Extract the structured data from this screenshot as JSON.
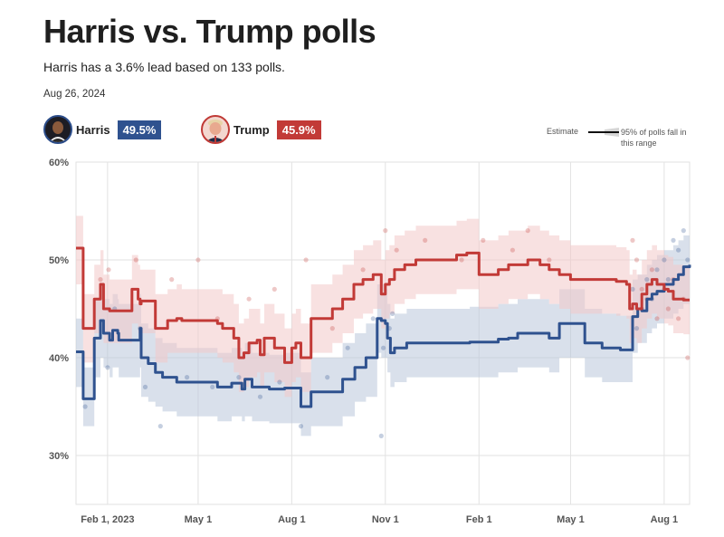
{
  "header": {
    "title": "Harris vs. Trump polls",
    "subtitle": "Harris has a 3.6% lead based on 133 polls.",
    "date": "Aug 26, 2024"
  },
  "candidates": [
    {
      "name": "Harris",
      "value": "49.5%",
      "color": "#2f528f",
      "avatar_icon": "harris-avatar-icon"
    },
    {
      "name": "Trump",
      "value": "45.9%",
      "color": "#c23a37",
      "avatar_icon": "trump-avatar-icon"
    }
  ],
  "estimate_key": {
    "label": "Estimate",
    "range_label": "95% of polls fall in this range"
  },
  "chart_data": {
    "type": "line",
    "title": "Harris vs. Trump polls",
    "ylabel": "",
    "xlabel": "",
    "ylim": [
      25,
      60
    ],
    "yticks": [
      30,
      40,
      50,
      60
    ],
    "ytick_labels": [
      "30%",
      "40%",
      "50%",
      "60%"
    ],
    "x_domain": [
      "2023-01-01",
      "2024-08-26"
    ],
    "xticks": [
      "2023-02-01",
      "2023-05-01",
      "2023-08-01",
      "2023-11-01",
      "2024-02-01",
      "2024-05-01",
      "2024-08-01"
    ],
    "xtick_labels": [
      "Feb 1, 2023",
      "May 1",
      "Aug 1",
      "Nov 1",
      "Feb 1",
      "May 1",
      "Aug 1"
    ],
    "grid": true,
    "series": [
      {
        "name": "Harris",
        "color": "#2f528f",
        "band_color": "#b9c7da",
        "dates": [
          "2023-01-01",
          "2023-01-04",
          "2023-01-07",
          "2023-01-08",
          "2023-01-18",
          "2023-01-19",
          "2023-01-25",
          "2023-01-28",
          "2023-02-03",
          "2023-02-05",
          "2023-02-06",
          "2023-02-11",
          "2023-02-12",
          "2023-02-20",
          "2023-02-25",
          "2023-03-05",
          "2023-03-06",
          "2023-03-12",
          "2023-03-13",
          "2023-03-20",
          "2023-03-27",
          "2023-04-06",
          "2023-04-10",
          "2023-04-25",
          "2023-05-05",
          "2023-05-20",
          "2023-06-03",
          "2023-06-13",
          "2023-06-16",
          "2023-06-23",
          "2023-07-01",
          "2023-07-10",
          "2023-07-15",
          "2023-07-25",
          "2023-08-02",
          "2023-08-10",
          "2023-08-20",
          "2023-09-01",
          "2023-09-20",
          "2023-10-02",
          "2023-10-13",
          "2023-10-22",
          "2023-10-24",
          "2023-10-28",
          "2023-11-01",
          "2023-11-03",
          "2023-11-06",
          "2023-11-10",
          "2023-11-22",
          "2023-12-01",
          "2024-01-01",
          "2024-01-20",
          "2024-01-23",
          "2024-02-10",
          "2024-02-12",
          "2024-02-20",
          "2024-03-01",
          "2024-03-10",
          "2024-03-15",
          "2024-04-01",
          "2024-04-10",
          "2024-04-20",
          "2024-05-01",
          "2024-05-15",
          "2024-06-01",
          "2024-06-19",
          "2024-06-27",
          "2024-07-01",
          "2024-07-06",
          "2024-07-10",
          "2024-07-15",
          "2024-07-20",
          "2024-07-25",
          "2024-08-01",
          "2024-08-10",
          "2024-08-15",
          "2024-08-20",
          "2024-08-26"
        ],
        "values": [
          40.6,
          40.6,
          40.6,
          35.8,
          35.8,
          42.0,
          43.8,
          42.5,
          41.8,
          41.8,
          42.8,
          42.5,
          41.8,
          41.8,
          41.8,
          43.0,
          40.0,
          40.0,
          39.4,
          38.5,
          38.0,
          38.0,
          37.5,
          37.5,
          37.5,
          37.0,
          37.4,
          36.8,
          37.8,
          37.0,
          37.0,
          36.8,
          36.8,
          36.9,
          36.9,
          35.0,
          36.5,
          36.5,
          37.8,
          39.0,
          40.0,
          40.0,
          44.0,
          43.8,
          43.5,
          42.0,
          40.5,
          41.0,
          41.5,
          41.5,
          41.5,
          41.5,
          41.6,
          41.6,
          41.6,
          41.9,
          42.0,
          42.5,
          42.5,
          42.5,
          42.0,
          43.5,
          43.5,
          41.5,
          41.0,
          40.8,
          40.8,
          44.2,
          45.0,
          44.8,
          46.0,
          46.5,
          46.8,
          47.5,
          48.0,
          48.5,
          49.3,
          49.5
        ],
        "band_lower": [
          37,
          37,
          37,
          33,
          33,
          38,
          40,
          39,
          38,
          38,
          39,
          39,
          38,
          38,
          38,
          39,
          36,
          36,
          35.5,
          35,
          34.5,
          34.5,
          34,
          34,
          34,
          33.5,
          34,
          33.5,
          34,
          33.5,
          33.5,
          33.3,
          33.3,
          33.3,
          33.3,
          32,
          33,
          33,
          34,
          35.5,
          36,
          36,
          40.5,
          40,
          40,
          38.5,
          37,
          37.5,
          38,
          38,
          38,
          38,
          38,
          38,
          38,
          38.5,
          38.5,
          39,
          39,
          39,
          38.5,
          40,
          40,
          38,
          37.5,
          37.5,
          37.5,
          40.5,
          41.5,
          41.5,
          42.5,
          43,
          43.5,
          44,
          44.5,
          45,
          45.5,
          46
        ],
        "band_upper": [
          44,
          44,
          44,
          39,
          39,
          46,
          47.5,
          46,
          45.5,
          45.5,
          46.5,
          46,
          45.5,
          45.5,
          45.5,
          46.5,
          43.5,
          43.5,
          43,
          42,
          41.5,
          41.5,
          41,
          41,
          41,
          40.5,
          41,
          40.5,
          41.5,
          40.5,
          40.5,
          40.3,
          40.3,
          40.5,
          40.5,
          38.5,
          40,
          40,
          41.5,
          42.5,
          43.5,
          43.5,
          47.5,
          47.5,
          47,
          45.5,
          44,
          44.5,
          45,
          45,
          45,
          45,
          45.2,
          45.2,
          45.2,
          45.5,
          45.5,
          46,
          46,
          46,
          45.5,
          47,
          47,
          45,
          44.5,
          44.3,
          44.3,
          48,
          48.5,
          48.5,
          49.5,
          50,
          50.5,
          51,
          51.5,
          52,
          52.5,
          53
        ]
      },
      {
        "name": "Trump",
        "color": "#c23a37",
        "band_color": "#f2c9c9",
        "dates": [
          "2023-01-01",
          "2023-01-07",
          "2023-01-08",
          "2023-01-18",
          "2023-01-19",
          "2023-01-25",
          "2023-01-28",
          "2023-02-03",
          "2023-02-05",
          "2023-02-20",
          "2023-02-25",
          "2023-03-03",
          "2023-03-05",
          "2023-03-06",
          "2023-03-20",
          "2023-04-01",
          "2023-04-10",
          "2023-04-15",
          "2023-05-01",
          "2023-05-20",
          "2023-05-25",
          "2023-06-05",
          "2023-06-10",
          "2023-06-15",
          "2023-06-20",
          "2023-06-28",
          "2023-07-01",
          "2023-07-05",
          "2023-07-15",
          "2023-07-25",
          "2023-08-01",
          "2023-08-05",
          "2023-08-10",
          "2023-08-20",
          "2023-09-01",
          "2023-09-10",
          "2023-09-20",
          "2023-10-01",
          "2023-10-10",
          "2023-10-20",
          "2023-10-25",
          "2023-10-28",
          "2023-11-01",
          "2023-11-05",
          "2023-11-10",
          "2023-11-20",
          "2023-12-01",
          "2023-12-15",
          "2024-01-01",
          "2024-01-10",
          "2024-01-20",
          "2024-02-01",
          "2024-02-10",
          "2024-02-20",
          "2024-03-01",
          "2024-03-10",
          "2024-03-20",
          "2024-04-01",
          "2024-04-10",
          "2024-04-20",
          "2024-05-01",
          "2024-05-15",
          "2024-06-01",
          "2024-06-15",
          "2024-06-25",
          "2024-06-28",
          "2024-07-01",
          "2024-07-05",
          "2024-07-10",
          "2024-07-15",
          "2024-07-20",
          "2024-07-25",
          "2024-08-01",
          "2024-08-05",
          "2024-08-10",
          "2024-08-15",
          "2024-08-20",
          "2024-08-26"
        ],
        "values": [
          51.2,
          51.2,
          43.0,
          43.0,
          46.0,
          47.5,
          45.0,
          44.8,
          44.8,
          44.8,
          47.0,
          46.0,
          45.5,
          45.8,
          43.0,
          43.8,
          44.0,
          43.8,
          43.8,
          43.5,
          43.0,
          42.0,
          40.0,
          40.5,
          41.5,
          41.8,
          40.3,
          42.0,
          41.0,
          39.5,
          41.0,
          41.5,
          40.0,
          44.0,
          44.0,
          45.0,
          46.0,
          47.5,
          48.0,
          48.5,
          48.5,
          46.5,
          47.5,
          48.0,
          49.0,
          49.5,
          50.0,
          50.0,
          50.0,
          50.5,
          50.7,
          48.5,
          48.5,
          49.0,
          49.5,
          49.5,
          50.0,
          49.5,
          49.0,
          48.5,
          48.0,
          48.0,
          48.0,
          47.8,
          47.5,
          45.0,
          45.5,
          45.0,
          46.5,
          47.5,
          48.0,
          47.5,
          47.0,
          46.8,
          46.0,
          46.0,
          45.9,
          45.9
        ],
        "band_lower": [
          47.5,
          47.5,
          39.5,
          39.5,
          42.5,
          44,
          41.5,
          41.5,
          41.5,
          41.5,
          43.5,
          42.5,
          42,
          42.5,
          39.5,
          40.5,
          40.5,
          40.5,
          40.5,
          40,
          39.5,
          38.5,
          36.5,
          37,
          38,
          38.5,
          37,
          38.5,
          37.5,
          36,
          37.5,
          38,
          36.5,
          40.5,
          40.5,
          41.5,
          42.5,
          44,
          44.5,
          45,
          45,
          43,
          44,
          44.5,
          45.5,
          46,
          46.5,
          46.5,
          46.5,
          47,
          47,
          45,
          45,
          45.5,
          46,
          46,
          46.5,
          46,
          45.5,
          45,
          44.5,
          44.5,
          44.5,
          44.3,
          44,
          41.5,
          42,
          41.5,
          43,
          44,
          44.5,
          44,
          43.5,
          43.3,
          42.5,
          42.5,
          42.4,
          42.4
        ],
        "band_upper": [
          54.5,
          54.5,
          46.5,
          46.5,
          49.5,
          51,
          48.5,
          48,
          48,
          48,
          50.5,
          49.5,
          49,
          49,
          46.5,
          47,
          47.5,
          47,
          47,
          47,
          46.5,
          45.5,
          43.5,
          44,
          45,
          45,
          43.5,
          45.5,
          44.5,
          43,
          44.5,
          45,
          43.5,
          47.5,
          47.5,
          48.5,
          49.5,
          51,
          51.5,
          52,
          52,
          50,
          51,
          51.5,
          52.5,
          53,
          53.5,
          53.5,
          53.5,
          54,
          54.2,
          52,
          52,
          52.5,
          53,
          53,
          53.5,
          53,
          52.5,
          52,
          51.5,
          51.5,
          51.5,
          51.3,
          51,
          48.5,
          49,
          48.5,
          50,
          51,
          51.5,
          51,
          50.5,
          50.3,
          49.5,
          49.5,
          49.4,
          49.4
        ]
      }
    ],
    "polls": [
      {
        "candidate": "Harris",
        "date": "2023-01-10",
        "value": 35
      },
      {
        "candidate": "Harris",
        "date": "2023-02-01",
        "value": 39
      },
      {
        "candidate": "Harris",
        "date": "2023-02-08",
        "value": 45
      },
      {
        "candidate": "Harris",
        "date": "2023-03-05",
        "value": 43
      },
      {
        "candidate": "Harris",
        "date": "2023-03-10",
        "value": 37
      },
      {
        "candidate": "Harris",
        "date": "2023-03-25",
        "value": 33
      },
      {
        "candidate": "Harris",
        "date": "2023-04-20",
        "value": 38
      },
      {
        "candidate": "Harris",
        "date": "2023-05-15",
        "value": 37
      },
      {
        "candidate": "Harris",
        "date": "2023-06-10",
        "value": 38
      },
      {
        "candidate": "Harris",
        "date": "2023-07-01",
        "value": 36
      },
      {
        "candidate": "Harris",
        "date": "2023-07-20",
        "value": 37.5
      },
      {
        "candidate": "Harris",
        "date": "2023-08-10",
        "value": 33
      },
      {
        "candidate": "Harris",
        "date": "2023-09-05",
        "value": 38
      },
      {
        "candidate": "Harris",
        "date": "2023-09-25",
        "value": 41
      },
      {
        "candidate": "Harris",
        "date": "2023-10-20",
        "value": 44
      },
      {
        "candidate": "Harris",
        "date": "2023-10-30",
        "value": 41
      },
      {
        "candidate": "Harris",
        "date": "2023-11-05",
        "value": 43
      },
      {
        "candidate": "Harris",
        "date": "2023-11-08",
        "value": 44.5
      },
      {
        "candidate": "Harris",
        "date": "2023-10-28",
        "value": 32
      },
      {
        "candidate": "Harris",
        "date": "2024-07-01",
        "value": 47
      },
      {
        "candidate": "Harris",
        "date": "2024-07-05",
        "value": 43
      },
      {
        "candidate": "Harris",
        "date": "2024-07-10",
        "value": 45
      },
      {
        "candidate": "Harris",
        "date": "2024-07-15",
        "value": 48
      },
      {
        "candidate": "Harris",
        "date": "2024-07-20",
        "value": 46
      },
      {
        "candidate": "Harris",
        "date": "2024-07-25",
        "value": 49
      },
      {
        "candidate": "Harris",
        "date": "2024-08-01",
        "value": 50
      },
      {
        "candidate": "Harris",
        "date": "2024-08-05",
        "value": 48
      },
      {
        "candidate": "Harris",
        "date": "2024-08-10",
        "value": 52
      },
      {
        "candidate": "Harris",
        "date": "2024-08-15",
        "value": 51
      },
      {
        "candidate": "Harris",
        "date": "2024-08-20",
        "value": 53
      },
      {
        "candidate": "Harris",
        "date": "2024-08-24",
        "value": 50
      },
      {
        "candidate": "Trump",
        "date": "2023-01-25",
        "value": 48
      },
      {
        "candidate": "Trump",
        "date": "2023-02-02",
        "value": 49
      },
      {
        "candidate": "Trump",
        "date": "2023-03-01",
        "value": 50
      },
      {
        "candidate": "Trump",
        "date": "2023-04-05",
        "value": 48
      },
      {
        "candidate": "Trump",
        "date": "2023-05-01",
        "value": 50
      },
      {
        "candidate": "Trump",
        "date": "2023-05-20",
        "value": 44
      },
      {
        "candidate": "Trump",
        "date": "2023-06-20",
        "value": 46
      },
      {
        "candidate": "Trump",
        "date": "2023-07-15",
        "value": 47
      },
      {
        "candidate": "Trump",
        "date": "2023-08-15",
        "value": 50
      },
      {
        "candidate": "Trump",
        "date": "2023-09-10",
        "value": 43
      },
      {
        "candidate": "Trump",
        "date": "2023-10-10",
        "value": 49
      },
      {
        "candidate": "Trump",
        "date": "2023-11-01",
        "value": 53
      },
      {
        "candidate": "Trump",
        "date": "2023-11-12",
        "value": 51
      },
      {
        "candidate": "Trump",
        "date": "2023-12-10",
        "value": 52
      },
      {
        "candidate": "Trump",
        "date": "2024-01-15",
        "value": 50
      },
      {
        "candidate": "Trump",
        "date": "2024-02-05",
        "value": 52
      },
      {
        "candidate": "Trump",
        "date": "2024-03-05",
        "value": 51
      },
      {
        "candidate": "Trump",
        "date": "2024-03-20",
        "value": 53
      },
      {
        "candidate": "Trump",
        "date": "2024-04-10",
        "value": 50
      },
      {
        "candidate": "Trump",
        "date": "2024-07-01",
        "value": 52
      },
      {
        "candidate": "Trump",
        "date": "2024-07-05",
        "value": 50
      },
      {
        "candidate": "Trump",
        "date": "2024-07-10",
        "value": 47
      },
      {
        "candidate": "Trump",
        "date": "2024-07-15",
        "value": 46
      },
      {
        "candidate": "Trump",
        "date": "2024-07-20",
        "value": 49
      },
      {
        "candidate": "Trump",
        "date": "2024-07-25",
        "value": 44
      },
      {
        "candidate": "Trump",
        "date": "2024-08-01",
        "value": 47
      },
      {
        "candidate": "Trump",
        "date": "2024-08-05",
        "value": 45
      },
      {
        "candidate": "Trump",
        "date": "2024-08-10",
        "value": 48
      },
      {
        "candidate": "Trump",
        "date": "2024-08-15",
        "value": 44
      },
      {
        "candidate": "Trump",
        "date": "2024-08-20",
        "value": 46
      },
      {
        "candidate": "Trump",
        "date": "2024-08-24",
        "value": 40
      }
    ]
  }
}
